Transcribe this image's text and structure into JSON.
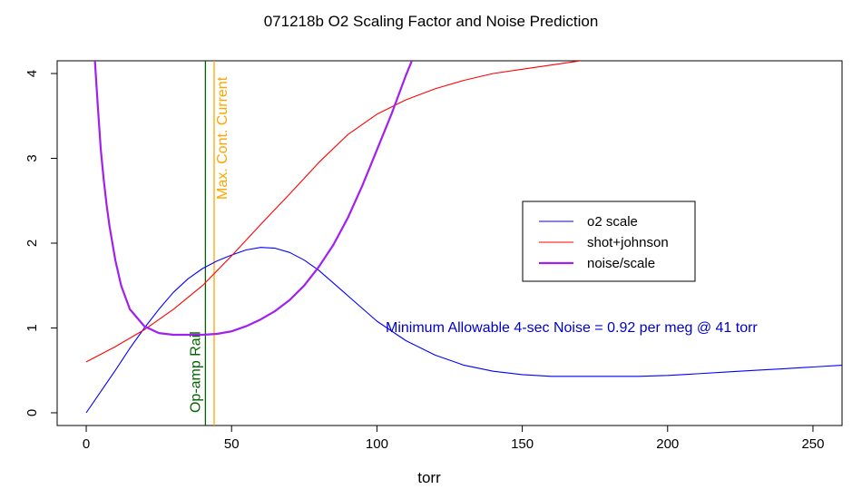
{
  "chart_data": {
    "type": "line",
    "title": "071218b   O2 Scaling Factor and Noise Prediction",
    "xlabel": "torr",
    "ylabel": "",
    "xlim": [
      -10,
      260
    ],
    "ylim": [
      -0.15,
      4.15
    ],
    "xticks": [
      0,
      50,
      100,
      150,
      200,
      250
    ],
    "yticks": [
      0,
      1,
      2,
      3,
      4
    ],
    "grid": false,
    "legend_position": "right",
    "series": [
      {
        "name": "o2 scale",
        "color": "#0000ff",
        "x": [
          0,
          5,
          10,
          15,
          20,
          25,
          30,
          35,
          40,
          45,
          50,
          55,
          60,
          65,
          70,
          75,
          80,
          85,
          90,
          95,
          100,
          110,
          120,
          130,
          140,
          150,
          160,
          170,
          180,
          190,
          200,
          210,
          220,
          230,
          240,
          250,
          260
        ],
        "y": [
          0.0,
          0.25,
          0.5,
          0.76,
          1.0,
          1.22,
          1.42,
          1.58,
          1.7,
          1.79,
          1.86,
          1.92,
          1.95,
          1.94,
          1.89,
          1.8,
          1.68,
          1.53,
          1.38,
          1.23,
          1.08,
          0.85,
          0.68,
          0.56,
          0.49,
          0.45,
          0.43,
          0.43,
          0.43,
          0.43,
          0.44,
          0.46,
          0.48,
          0.5,
          0.52,
          0.54,
          0.56
        ]
      },
      {
        "name": "shot+johnson",
        "color": "#ff0000",
        "x": [
          0,
          10,
          20,
          30,
          40,
          50,
          60,
          70,
          80,
          90,
          100,
          110,
          120,
          130,
          140,
          150,
          160,
          170
        ],
        "y": [
          0.6,
          0.78,
          0.98,
          1.22,
          1.5,
          1.85,
          2.22,
          2.58,
          2.95,
          3.28,
          3.52,
          3.69,
          3.82,
          3.92,
          4.0,
          4.05,
          4.1,
          4.15
        ]
      },
      {
        "name": "noise/scale",
        "color": "#a020f0",
        "x": [
          3,
          4,
          5,
          6,
          7,
          8,
          10,
          12,
          15,
          20,
          25,
          30,
          35,
          40,
          45,
          50,
          55,
          60,
          65,
          70,
          75,
          80,
          85,
          90,
          95,
          100,
          105,
          110,
          112
        ],
        "y": [
          4.15,
          3.6,
          3.1,
          2.75,
          2.45,
          2.2,
          1.8,
          1.5,
          1.22,
          1.02,
          0.94,
          0.92,
          0.92,
          0.92,
          0.93,
          0.96,
          1.02,
          1.1,
          1.2,
          1.33,
          1.5,
          1.72,
          1.98,
          2.3,
          2.68,
          3.1,
          3.52,
          3.98,
          4.15
        ]
      }
    ],
    "vlines": [
      {
        "x": 41,
        "color": "#006400",
        "label": "Op-amp Rail"
      },
      {
        "x": 44,
        "color": "#ffa500",
        "label": "Max. Cont. Current"
      }
    ],
    "annotations": [
      {
        "text": "Minimum Allowable 4-sec Noise =  0.92  per meg @  41  torr",
        "x": 103,
        "y": 1.0,
        "color": "#0000cd"
      }
    ]
  }
}
